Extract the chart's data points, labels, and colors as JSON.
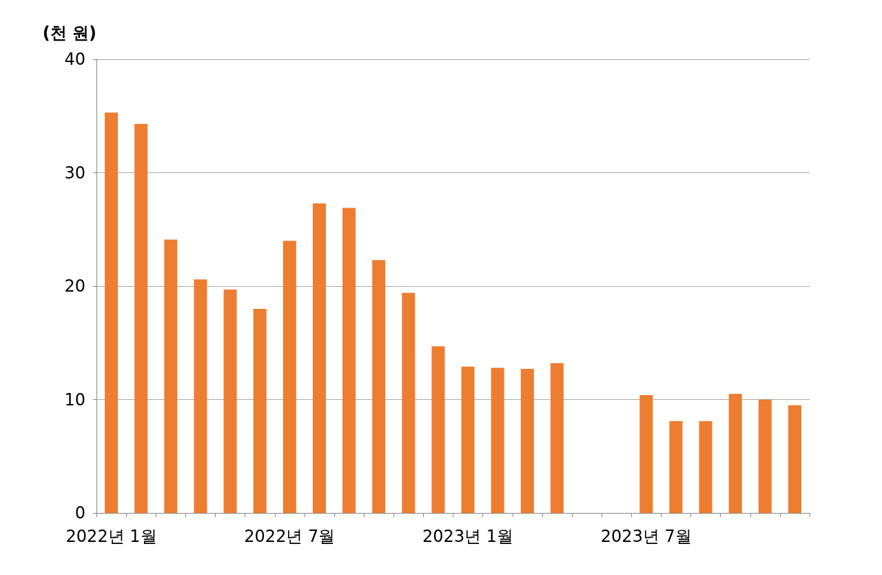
{
  "chart_data": {
    "type": "bar",
    "ylabel": "(천 원)",
    "categories": [
      "2022년 1월",
      null,
      null,
      null,
      null,
      null,
      "2022년 7월",
      null,
      null,
      null,
      null,
      null,
      "2023년 1월",
      null,
      null,
      null,
      null,
      null,
      "2023년 7월",
      null,
      null,
      null,
      null,
      null
    ],
    "values": [
      35.3,
      34.3,
      24.1,
      20.6,
      19.7,
      18.0,
      24.0,
      27.3,
      26.9,
      22.3,
      19.4,
      14.7,
      12.9,
      12.8,
      12.7,
      13.2,
      null,
      null,
      10.4,
      8.1,
      8.1,
      10.5,
      10.0,
      9.5
    ],
    "color": "#ed7d31",
    "ylim": [
      0,
      40
    ],
    "yticks": [
      0,
      10,
      20,
      30,
      40
    ],
    "grid": "y"
  }
}
